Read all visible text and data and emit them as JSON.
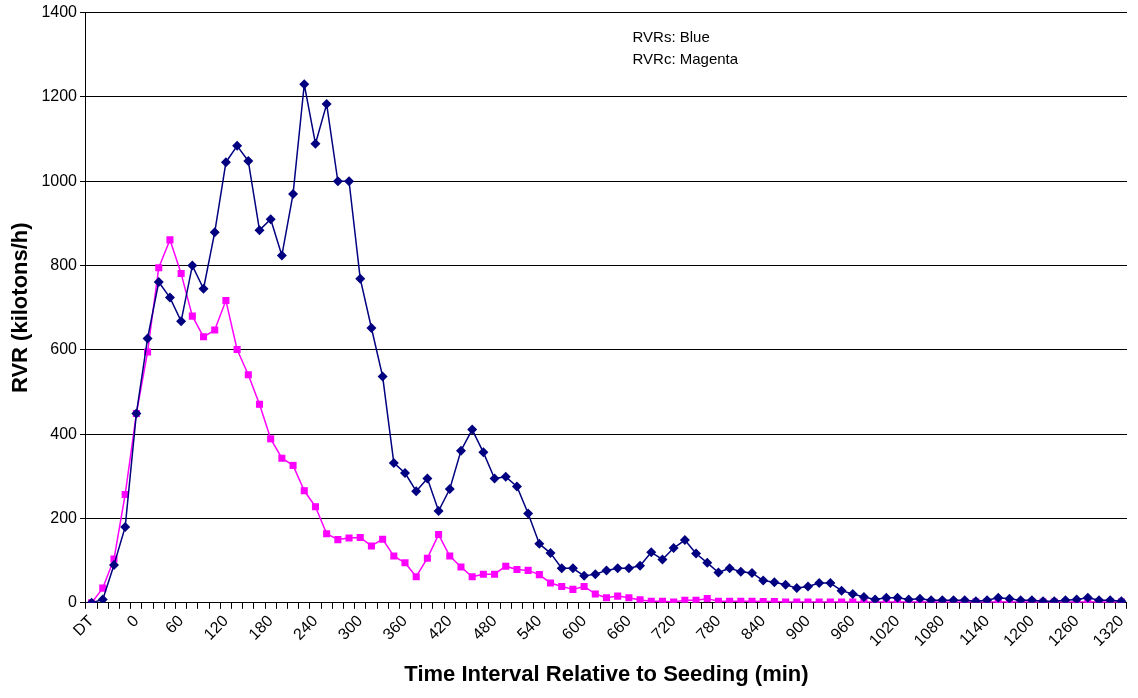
{
  "chart_data": {
    "type": "line",
    "xlabel": "Time Interval Relative to Seeding (min)",
    "ylabel": "RVR (kilotons/h)",
    "categories": [
      "DT",
      null,
      null,
      null,
      "0",
      null,
      null,
      null,
      "60",
      null,
      null,
      null,
      "120",
      null,
      null,
      null,
      "180",
      null,
      null,
      null,
      "240",
      null,
      null,
      null,
      "300",
      null,
      null,
      null,
      "360",
      null,
      null,
      null,
      "420",
      null,
      null,
      null,
      "480",
      null,
      null,
      null,
      "540",
      null,
      null,
      null,
      "600",
      null,
      null,
      null,
      "660",
      null,
      null,
      null,
      "720",
      null,
      null,
      null,
      "780",
      null,
      null,
      null,
      "840",
      null,
      null,
      null,
      "900",
      null,
      null,
      null,
      "960",
      null,
      null,
      null,
      "1020",
      null,
      null,
      null,
      "1080",
      null,
      null,
      null,
      "1140",
      null,
      null,
      null,
      "1200",
      null,
      null,
      null,
      "1260",
      null,
      null,
      null,
      "1320"
    ],
    "series": [
      {
        "color": "#000080",
        "marker": "diamond",
        "values": [
          0,
          8,
          90,
          180,
          449,
          627,
          761,
          724,
          668,
          800,
          745,
          879,
          1045,
          1084,
          1048,
          884,
          910,
          824,
          970,
          1230,
          1089,
          1183,
          1000,
          1000,
          769,
          652,
          537,
          332,
          308,
          265,
          295,
          218,
          270,
          361,
          411,
          357,
          295,
          299,
          276,
          212,
          140,
          118,
          82,
          82,
          64,
          68,
          77,
          82,
          82,
          88,
          120,
          103,
          130,
          149,
          117,
          95,
          72,
          82,
          74,
          71,
          53,
          49,
          43,
          35,
          39,
          47,
          47,
          29,
          21,
          14,
          8,
          12,
          12,
          8,
          10,
          6,
          6,
          6,
          6,
          4,
          6,
          12,
          10,
          6,
          6,
          4,
          4,
          6,
          8,
          12,
          6,
          6,
          4
        ]
      },
      {
        "color": "#ff00ff",
        "marker": "square",
        "values": [
          0,
          35,
          104,
          257,
          449,
          595,
          795,
          861,
          781,
          680,
          631,
          647,
          717,
          601,
          541,
          471,
          389,
          343,
          326,
          266,
          228,
          164,
          150,
          154,
          155,
          135,
          151,
          111,
          95,
          62,
          106,
          162,
          111,
          85,
          62,
          68,
          68,
          87,
          79,
          77,
          67,
          47,
          39,
          32,
          39,
          21,
          12,
          16,
          12,
          7,
          4,
          4,
          2,
          6,
          6,
          10,
          4,
          4,
          4,
          4,
          3,
          3,
          2,
          2,
          2,
          2,
          2,
          2,
          2,
          2,
          2,
          2,
          2,
          2,
          2,
          2,
          2,
          2,
          2,
          2,
          2,
          2,
          2,
          2,
          2,
          2,
          2,
          2,
          2,
          2,
          2,
          2,
          2
        ]
      }
    ],
    "ylim": [
      0,
      1400
    ],
    "yticks": [
      0,
      200,
      400,
      600,
      800,
      1000,
      1200,
      1400
    ],
    "grid": "y",
    "legend": false,
    "line_style": "solid",
    "annotations": [
      "RVRs: Blue\nRVRc: Magenta"
    ]
  }
}
